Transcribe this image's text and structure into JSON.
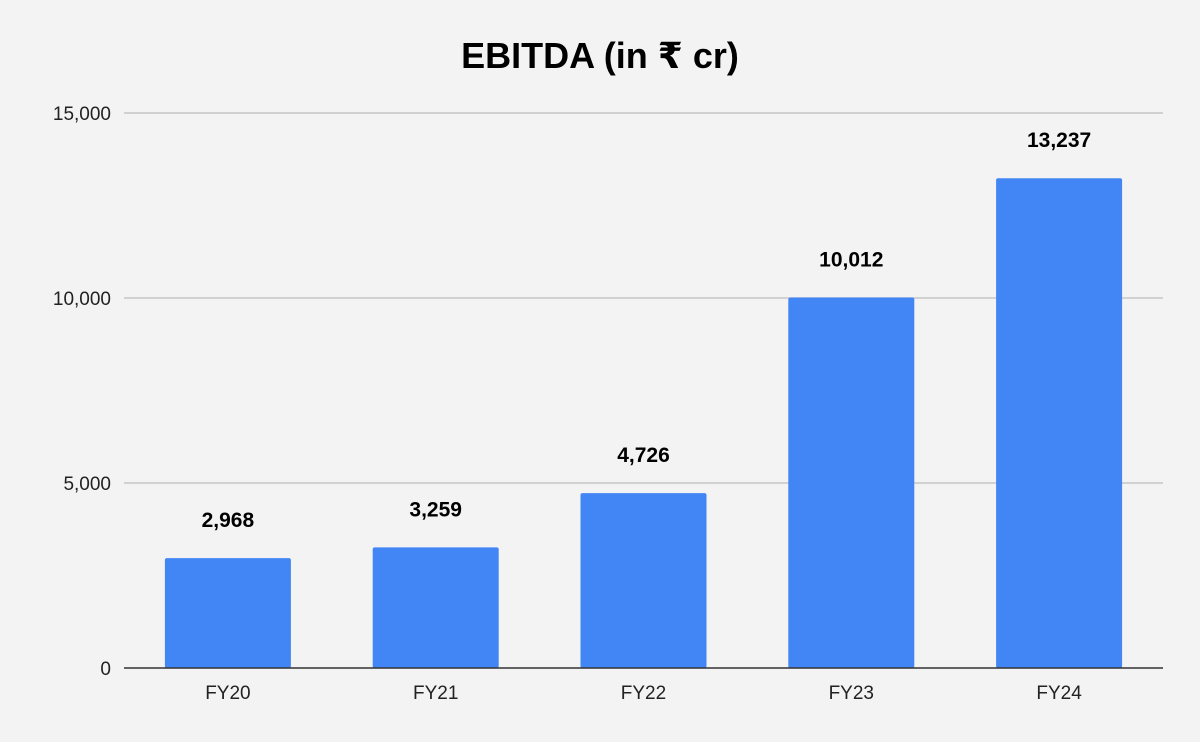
{
  "chart_data": {
    "type": "bar",
    "title": "EBITDA (in ₹ cr)",
    "xlabel": "",
    "ylabel": "",
    "categories": [
      "FY20",
      "FY21",
      "FY22",
      "FY23",
      "FY24"
    ],
    "values": [
      2968,
      3259,
      4726,
      10012,
      13237
    ],
    "data_labels": [
      "2,968",
      "3,259",
      "4,726",
      "10,012",
      "13,237"
    ],
    "ylim": [
      0,
      15000
    ],
    "y_ticks": [
      0,
      5000,
      10000,
      15000
    ],
    "y_tick_labels": [
      "0",
      "5,000",
      "10,000",
      "15,000"
    ],
    "grid": true,
    "legend": "none",
    "colors": {
      "bar": "#4285f4",
      "background": "#f3f3f3",
      "gridline": "#c6c6c6",
      "axis": "#333333"
    }
  }
}
